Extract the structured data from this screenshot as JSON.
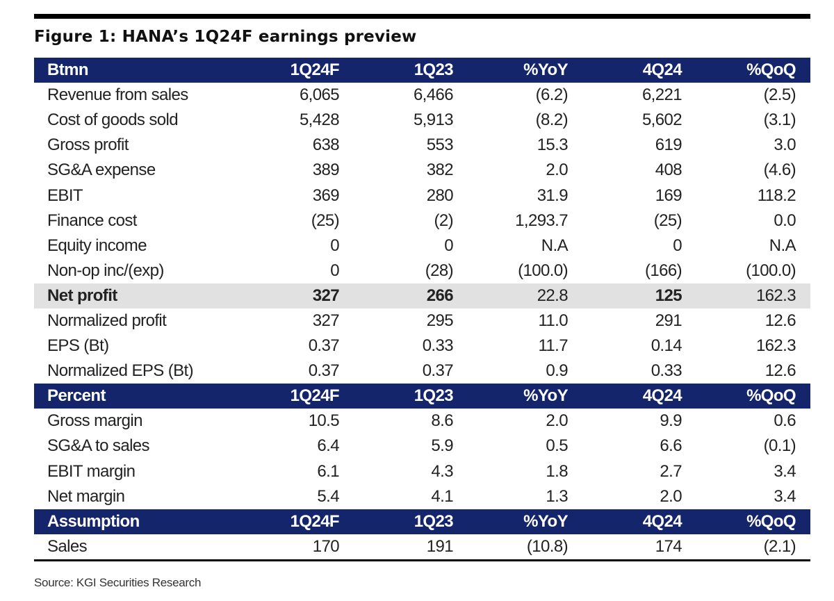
{
  "title": "Figure 1: HANA’s 1Q24F earnings preview",
  "header_color": "#14256b",
  "highlight_color": "#e1e1e1",
  "sections": [
    {
      "header": [
        "Btmn",
        "1Q24F",
        "1Q23",
        "%YoY",
        "4Q24",
        "%QoQ"
      ],
      "rows": [
        {
          "cells": [
            "Revenue from sales",
            "6,065",
            "6,466",
            "(6.2)",
            "6,221",
            "(2.5)"
          ]
        },
        {
          "cells": [
            "Cost of goods sold",
            "5,428",
            "5,913",
            "(8.2)",
            "5,602",
            "(3.1)"
          ]
        },
        {
          "cells": [
            "Gross profit",
            "638",
            "553",
            "15.3",
            "619",
            "3.0"
          ]
        },
        {
          "cells": [
            "SG&A expense",
            "389",
            "382",
            "2.0",
            "408",
            "(4.6)"
          ]
        },
        {
          "cells": [
            "EBIT",
            "369",
            "280",
            "31.9",
            "169",
            "118.2"
          ]
        },
        {
          "cells": [
            "Finance cost",
            "(25)",
            "(2)",
            "1,293.7",
            "(25)",
            "0.0"
          ]
        },
        {
          "cells": [
            "Equity income",
            "0",
            "0",
            "N.A",
            "0",
            "N.A"
          ]
        },
        {
          "cells": [
            "Non-op inc/(exp)",
            "0",
            "(28)",
            "(100.0)",
            "(166)",
            "(100.0)"
          ]
        },
        {
          "cells": [
            "Net profit",
            "327",
            "266",
            "22.8",
            "125",
            "162.3"
          ],
          "highlight": true
        },
        {
          "cells": [
            "Normalized profit",
            "327",
            "295",
            "11.0",
            "291",
            "12.6"
          ]
        },
        {
          "cells": [
            "EPS (Bt)",
            "0.37",
            "0.33",
            "11.7",
            "0.14",
            "162.3"
          ]
        },
        {
          "cells": [
            "Normalized EPS (Bt)",
            "0.37",
            "0.37",
            "0.9",
            "0.33",
            "12.6"
          ]
        }
      ]
    },
    {
      "header": [
        "Percent",
        "1Q24F",
        "1Q23",
        "%YoY",
        "4Q24",
        "%QoQ"
      ],
      "rows": [
        {
          "cells": [
            "Gross margin",
            "10.5",
            "8.6",
            "2.0",
            "9.9",
            "0.6"
          ]
        },
        {
          "cells": [
            "SG&A to sales",
            "6.4",
            "5.9",
            "0.5",
            "6.6",
            "(0.1)"
          ]
        },
        {
          "cells": [
            "EBIT margin",
            "6.1",
            "4.3",
            "1.8",
            "2.7",
            "3.4"
          ]
        },
        {
          "cells": [
            "Net margin",
            "5.4",
            "4.1",
            "1.3",
            "2.0",
            "3.4"
          ]
        }
      ]
    },
    {
      "header": [
        "Assumption",
        "1Q24F",
        "1Q23",
        "%YoY",
        "4Q24",
        "%QoQ"
      ],
      "rows": [
        {
          "cells": [
            "Sales",
            "170",
            "191",
            "(10.8)",
            "174",
            "(2.1)"
          ]
        }
      ]
    }
  ],
  "source": "Source: KGI Securities Research"
}
